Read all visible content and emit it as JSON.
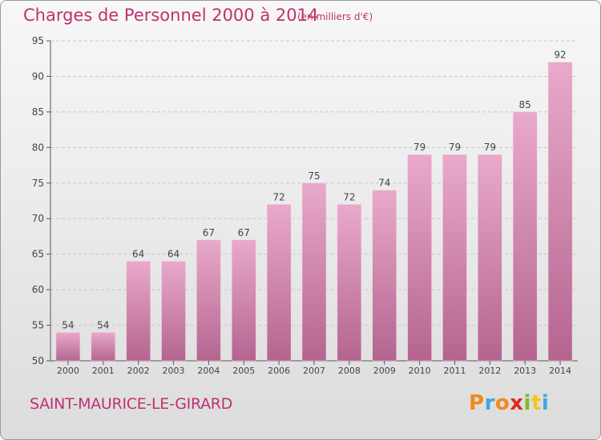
{
  "header": {
    "title": "Charges de Personnel 2000 à 2014",
    "subtitle": "(en milliers d'€)"
  },
  "footer": {
    "town": "SAINT-MAURICE-LE-GIRARD",
    "brand": [
      "P",
      "r",
      "o",
      "x",
      "i",
      "t",
      "i"
    ],
    "brand_colors": [
      "#f08a1c",
      "#3aa9e0",
      "#f08a1c",
      "#e0261d",
      "#7dbb2b",
      "#f6c31a",
      "#3aa9e0"
    ]
  },
  "colors": {
    "title": "#c0306e",
    "bar_top": "#e9a9cc",
    "bar_bottom": "#b4658f",
    "axis": "#555555",
    "grid": "#c8c8c8"
  },
  "chart_data": {
    "type": "bar",
    "title": "Charges de Personnel 2000 à 2014",
    "subtitle": "(en milliers d'€)",
    "categories": [
      "2000",
      "2001",
      "2002",
      "2003",
      "2004",
      "2005",
      "2006",
      "2007",
      "2008",
      "2009",
      "2010",
      "2011",
      "2012",
      "2013",
      "2014"
    ],
    "values": [
      54,
      54,
      64,
      64,
      67,
      67,
      72,
      75,
      72,
      74,
      79,
      79,
      79,
      85,
      92
    ],
    "ylim": [
      50,
      95
    ],
    "yticks": [
      50,
      55,
      60,
      65,
      70,
      75,
      80,
      85,
      90,
      95
    ],
    "grid": true,
    "data_labels": true
  }
}
